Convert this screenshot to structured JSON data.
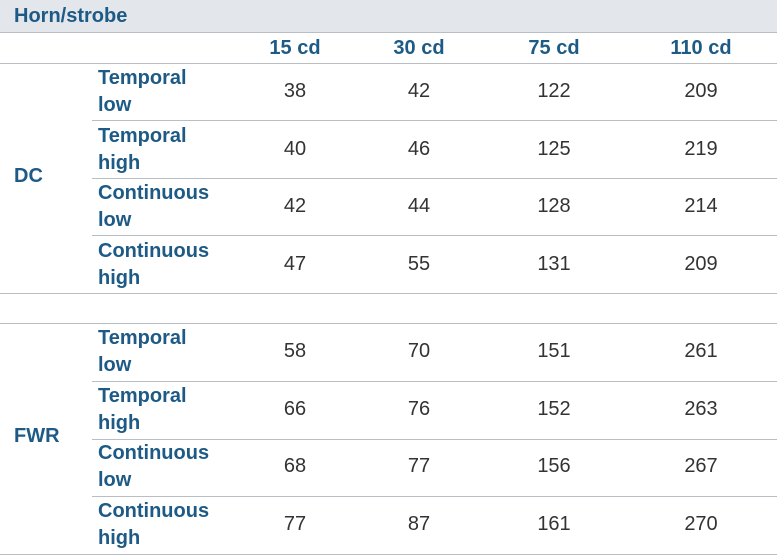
{
  "title": "Horn/strobe",
  "columns": [
    "15 cd",
    "30 cd",
    "75 cd",
    "110 cd"
  ],
  "groups": [
    {
      "name": "DC",
      "rows": [
        {
          "l1": "Temporal",
          "l2": "low",
          "values": [
            "38",
            "42",
            "122",
            "209"
          ]
        },
        {
          "l1": "Temporal",
          "l2": "high",
          "values": [
            "40",
            "46",
            "125",
            "219"
          ]
        },
        {
          "l1": "Continuous",
          "l2": "low",
          "values": [
            "42",
            "44",
            "128",
            "214"
          ]
        },
        {
          "l1": "Continuous",
          "l2": "high",
          "values": [
            "47",
            "55",
            "131",
            "209"
          ]
        }
      ]
    },
    {
      "name": "FWR",
      "rows": [
        {
          "l1": "Temporal",
          "l2": "low",
          "values": [
            "58",
            "70",
            "151",
            "261"
          ]
        },
        {
          "l1": "Temporal",
          "l2": "high",
          "values": [
            "66",
            "76",
            "152",
            "263"
          ]
        },
        {
          "l1": "Continuous",
          "l2": "low",
          "values": [
            "68",
            "77",
            "156",
            "267"
          ]
        },
        {
          "l1": "Continuous",
          "l2": "high",
          "values": [
            "77",
            "87",
            "161",
            "270"
          ]
        }
      ]
    }
  ]
}
